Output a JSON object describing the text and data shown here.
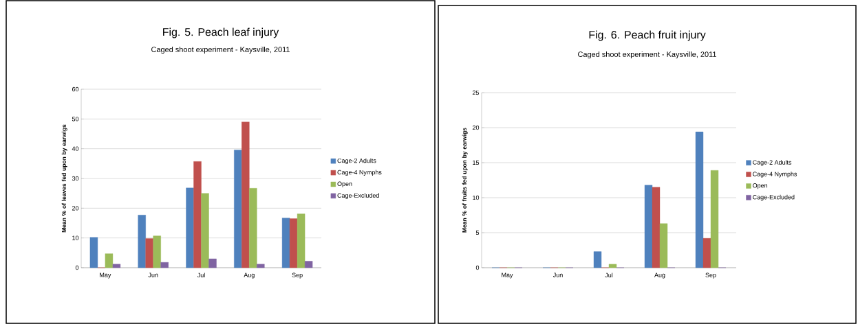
{
  "chart_data": [
    {
      "type": "bar",
      "title": "Fig. 5. Peach leaf injury",
      "subtitle": "Caged shoot experiment - Kaysville, 2011",
      "ylabel": "Mean % of leaves fed upon by earwigs",
      "categories": [
        "May",
        "Jun",
        "Jul",
        "Aug",
        "Sep"
      ],
      "series": [
        {
          "name": "Cage-2 Adults",
          "color": "#4f81bd",
          "values": [
            10.2,
            17.7,
            26.8,
            39.6,
            16.7
          ]
        },
        {
          "name": "Cage-4 Nymphs",
          "color": "#c0504d",
          "values": [
            0,
            9.8,
            35.7,
            49.0,
            16.5
          ]
        },
        {
          "name": "Open",
          "color": "#9bbb59",
          "values": [
            4.7,
            10.7,
            25.0,
            26.7,
            18.1
          ]
        },
        {
          "name": "Cage-Excluded",
          "color": "#8064a2",
          "values": [
            1.2,
            1.8,
            3.0,
            1.2,
            2.2
          ]
        }
      ],
      "ylim": [
        0,
        60
      ],
      "yticks": [
        0,
        10,
        20,
        30,
        40,
        50,
        60
      ],
      "grid": "y",
      "legend": "right"
    },
    {
      "type": "bar",
      "title": "Fig. 6. Peach fruit injury",
      "subtitle": "Caged shoot experiment - Kaysville, 2011",
      "ylabel": "Mean % of fruits fed upon by earwigs",
      "categories": [
        "May",
        "Jun",
        "Jul",
        "Aug",
        "Sep"
      ],
      "series": [
        {
          "name": "Cage-2 Adults",
          "color": "#4f81bd",
          "values": [
            0,
            0,
            2.3,
            11.8,
            19.4
          ]
        },
        {
          "name": "Cage-4 Nymphs",
          "color": "#c0504d",
          "values": [
            0,
            0,
            0,
            11.5,
            4.2
          ]
        },
        {
          "name": "Open",
          "color": "#9bbb59",
          "values": [
            0,
            0,
            0.5,
            6.3,
            13.9
          ]
        },
        {
          "name": "Cage-Excluded",
          "color": "#8064a2",
          "values": [
            0,
            0,
            0,
            0,
            0
          ]
        }
      ],
      "ylim": [
        0,
        25
      ],
      "yticks": [
        0,
        5,
        10,
        15,
        20,
        25
      ],
      "grid": "y",
      "legend": "right"
    }
  ]
}
